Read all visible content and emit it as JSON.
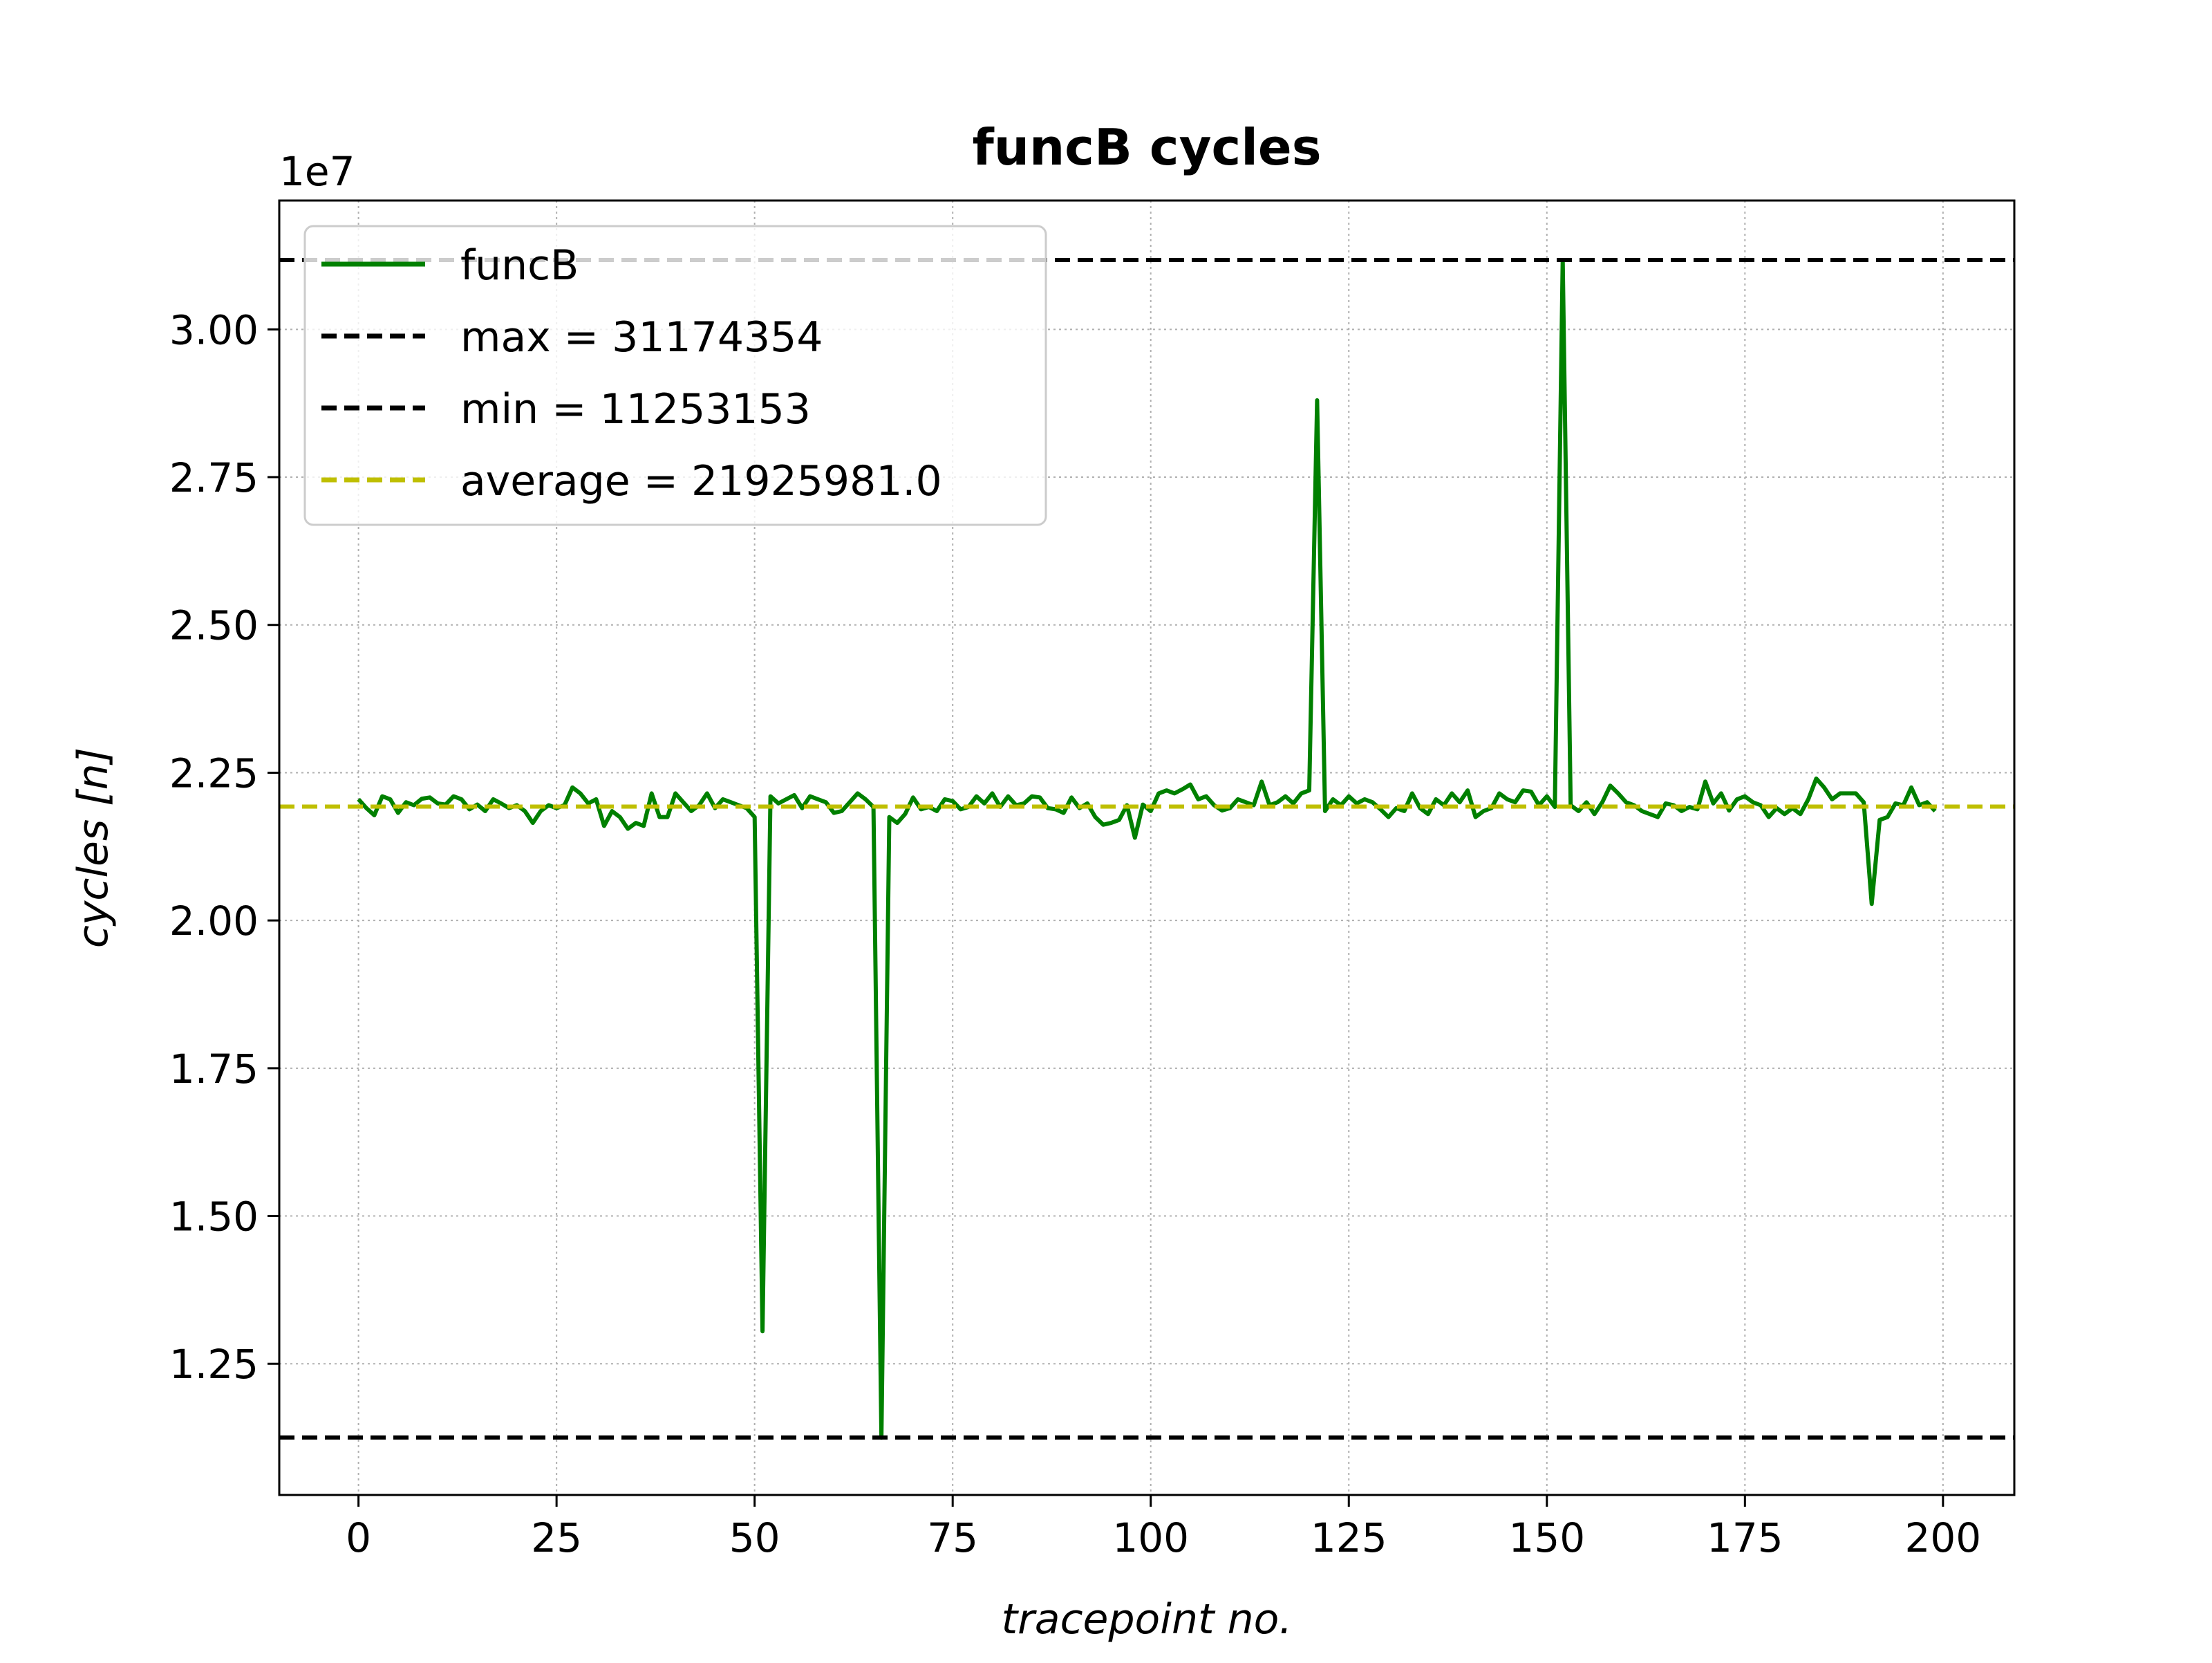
{
  "chart_data": {
    "type": "line",
    "title": "funcB cycles",
    "xlabel": "tracepoint no.",
    "ylabel": "cycles [n]",
    "y_offset_label": "1e7",
    "y_scale_factor": 10000000,
    "xlim": [
      -10,
      209
    ],
    "ylim": [
      10280000,
      32180000
    ],
    "xticks": [
      0,
      25,
      50,
      75,
      100,
      125,
      150,
      175,
      200
    ],
    "xtick_labels": [
      "0",
      "25",
      "50",
      "75",
      "100",
      "125",
      "150",
      "175",
      "200"
    ],
    "yticks": [
      12500000,
      15000000,
      17500000,
      20000000,
      22500000,
      25000000,
      27500000,
      30000000
    ],
    "ytick_labels": [
      "1.25",
      "1.50",
      "1.75",
      "2.00",
      "2.25",
      "2.50",
      "2.75",
      "3.00"
    ],
    "grid": true,
    "legend_position": "upper left",
    "series": [
      {
        "name": "funcB",
        "color": "#008000",
        "style": "solid",
        "x_start": 0,
        "x_step": 1,
        "values": [
          22050000,
          21900000,
          21780000,
          22100000,
          22050000,
          21820000,
          22000000,
          21950000,
          22060000,
          22080000,
          21980000,
          21960000,
          22100000,
          22050000,
          21880000,
          21960000,
          21850000,
          22050000,
          21980000,
          21900000,
          21950000,
          21850000,
          21650000,
          21850000,
          21950000,
          21900000,
          21950000,
          22250000,
          22150000,
          21980000,
          22050000,
          21600000,
          21850000,
          21750000,
          21550000,
          21650000,
          21600000,
          22150000,
          21750000,
          21750000,
          22150000,
          22000000,
          21850000,
          21950000,
          22150000,
          21900000,
          22050000,
          22000000,
          21950000,
          21900000,
          21750000,
          13050000,
          22100000,
          21980000,
          22050000,
          22120000,
          21900000,
          22100000,
          22050000,
          22000000,
          21820000,
          21850000,
          22000000,
          22150000,
          22050000,
          21920000,
          11250000,
          21750000,
          21650000,
          21800000,
          22080000,
          21880000,
          21920000,
          21850000,
          22050000,
          22020000,
          21880000,
          21920000,
          22100000,
          21980000,
          22150000,
          21920000,
          22100000,
          21950000,
          21980000,
          22100000,
          22080000,
          21900000,
          21880000,
          21820000,
          22080000,
          21900000,
          21980000,
          21750000,
          21620000,
          21650000,
          21700000,
          21950000,
          21400000,
          21960000,
          21850000,
          22150000,
          22200000,
          22150000,
          22220000,
          22300000,
          22050000,
          22100000,
          21950000,
          21860000,
          21900000,
          22050000,
          22000000,
          21950000,
          22350000,
          21950000,
          22000000,
          22100000,
          21980000,
          22150000,
          22200000,
          28800000,
          21850000,
          22050000,
          21950000,
          22100000,
          21980000,
          22050000,
          22000000,
          21880000,
          21750000,
          21900000,
          21850000,
          22150000,
          21900000,
          21800000,
          22050000,
          21950000,
          22150000,
          22000000,
          22200000,
          21750000,
          21850000,
          21900000,
          22150000,
          22050000,
          22000000,
          22200000,
          22180000,
          21950000,
          22100000,
          21920000,
          31174354,
          21950000,
          21850000,
          22000000,
          21800000,
          22000000,
          22280000,
          22150000,
          22000000,
          21950000,
          21850000,
          21800000,
          21750000,
          21980000,
          21950000,
          21850000,
          21920000,
          21880000,
          22350000,
          21980000,
          22150000,
          21860000,
          22050000,
          22100000,
          22000000,
          21950000,
          21750000,
          21900000,
          21800000,
          21900000,
          21800000,
          22050000,
          22400000,
          22250000,
          22050000,
          22150000,
          22150000,
          22150000,
          22000000,
          20280000,
          21700000,
          21750000,
          21980000,
          21950000,
          22250000,
          21950000,
          22000000,
          21850000
        ]
      },
      {
        "name": "max = 31174354",
        "color": "#000000",
        "style": "dashed",
        "constant": 31174354
      },
      {
        "name": "min = 11253153",
        "color": "#000000",
        "style": "dashed",
        "constant": 11253153
      },
      {
        "name": "average = 21925981.0",
        "color": "#bfbf00",
        "style": "dashed",
        "constant": 21925981.0
      }
    ]
  }
}
